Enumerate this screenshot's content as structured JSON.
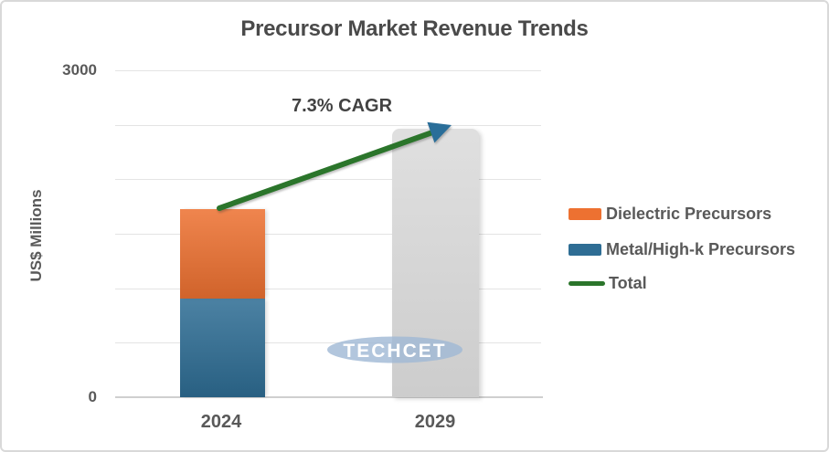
{
  "title": {
    "text": "Precursor Market Revenue Trends"
  },
  "annotation": {
    "text": "7.3% CAGR"
  },
  "y_axis": {
    "title": "US$ Millions",
    "ticks": [
      "3000",
      "0"
    ]
  },
  "x_axis": {
    "categories": [
      "2024",
      "2029"
    ]
  },
  "legend": {
    "items": [
      {
        "label": "Dielectric Precursors",
        "color": "#ED7131",
        "marker": "swatch"
      },
      {
        "label": "Metal/High-k Precursors",
        "color": "#2E6D94",
        "marker": "swatch"
      },
      {
        "label": "Total",
        "color": "#2B752B",
        "marker": "line"
      }
    ]
  },
  "watermark": {
    "text": "TECHCET",
    "color": "#9FB8D4"
  },
  "colors": {
    "dielectric": "#ED7131",
    "metal_high_k": "#2E6D94",
    "total_line": "#2B752B",
    "arrowhead": "#2A6E99",
    "projected_bar": "#D5D5D5",
    "gridline": "#E4E4E4",
    "text_dark": "#424242",
    "text_gray": "#595959"
  },
  "chart_data": {
    "type": "bar",
    "subtype": "stacked",
    "title": "Precursor Market Revenue Trends",
    "xlabel": "",
    "ylabel": "US$ Millions",
    "ylim": [
      0,
      3000
    ],
    "y_tick_labels_shown": [
      "3000",
      "0"
    ],
    "gridline_interval": 500,
    "grid": "horizontal",
    "legend_position": "right",
    "categories": [
      "2024",
      "2029"
    ],
    "series": [
      {
        "name": "Metal/High-k Precursors",
        "color": "#2E6D94",
        "values": [
          905,
          null
        ]
      },
      {
        "name": "Dielectric Precursors",
        "color": "#ED7131",
        "values": [
          820,
          null
        ]
      }
    ],
    "bar_2029": {
      "name": "Total (projected)",
      "color": "#D5D5D5",
      "value": 2460
    },
    "totals": {
      "2024": 1725,
      "2029": 2460
    },
    "annotation": {
      "text": "7.3% CAGR",
      "type": "growth-arrow",
      "from": "2024 total",
      "to": "2029 total",
      "line_color": "#2B752B",
      "arrowhead_color": "#2A6E99"
    },
    "watermark": "TECHCET"
  }
}
